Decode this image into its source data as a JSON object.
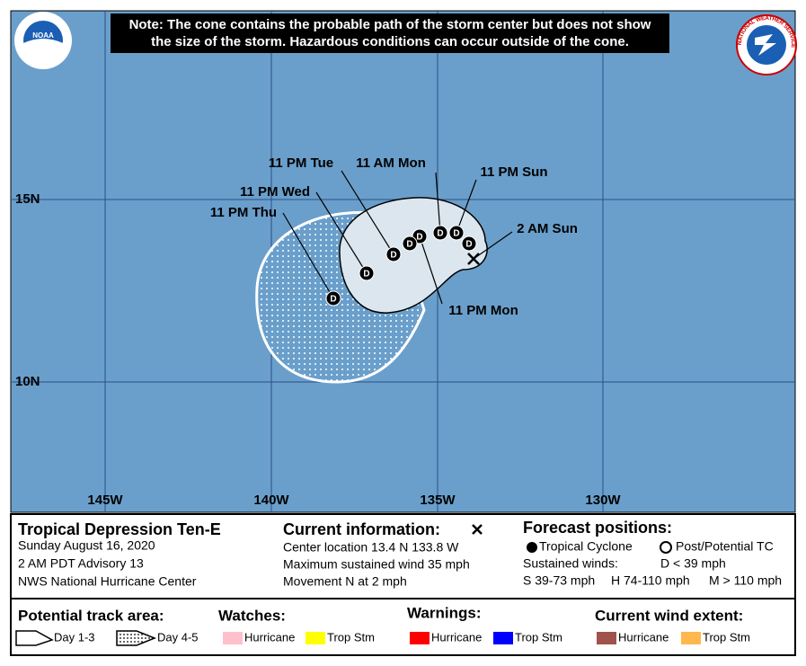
{
  "header": {
    "note": [
      "Note: The cone contains the probable path of the storm center but does not show",
      "the size of the storm. Hazardous conditions can occur outside of the cone."
    ],
    "left_logo": "NOAA",
    "right_logo": "NATIONAL WEATHER SERVICE"
  },
  "map": {
    "lon_labels": [
      "145W",
      "140W",
      "135W",
      "130W"
    ],
    "lat_labels": [
      "15N",
      "10N"
    ],
    "points": [
      {
        "label": "11 PM Sun",
        "symbol": "D"
      },
      {
        "label": null,
        "symbol": "D"
      },
      {
        "label": "11 AM Mon",
        "symbol": "D"
      },
      {
        "label": "11 PM Mon",
        "symbol": "D"
      },
      {
        "label": null,
        "symbol": "D"
      },
      {
        "label": "11 PM Tue",
        "symbol": "D"
      },
      {
        "label": "11 PM Wed",
        "symbol": "D"
      },
      {
        "label": "11 PM Thu",
        "symbol": "D"
      }
    ],
    "current": {
      "label": "2 AM Sun"
    }
  },
  "legend": {
    "storm": {
      "title": "Tropical Depression Ten-E",
      "lines": [
        "Sunday August 16, 2020",
        "2 AM PDT Advisory 13",
        "NWS National Hurricane Center"
      ]
    },
    "current": {
      "title": "Current information:",
      "lines": [
        "Center location 13.4 N 133.8 W",
        "Maximum sustained wind 35 mph",
        "Movement N at 2 mph"
      ]
    },
    "forecast": {
      "title": "Forecast positions:",
      "tropical": "Tropical Cyclone",
      "post": "Post/Potential TC",
      "winds": "Sustained winds:",
      "d": "D < 39 mph",
      "s": "S 39-73 mph",
      "h": "H 74-110 mph",
      "m": "M > 110 mph"
    },
    "track": {
      "title": "Potential track area:",
      "day13": "Day 1-3",
      "day45": "Day 4-5"
    },
    "watches": {
      "title": "Watches:",
      "items": [
        {
          "name": "Hurricane",
          "color": "#ffc0cb"
        },
        {
          "name": "Trop Stm",
          "color": "#ffff00"
        }
      ]
    },
    "warnings": {
      "title": "Warnings:",
      "items": [
        {
          "name": "Hurricane",
          "color": "#ff0000"
        },
        {
          "name": "Trop Stm",
          "color": "#0000ff"
        }
      ]
    },
    "wind": {
      "title": "Current wind extent:",
      "items": [
        {
          "name": "Hurricane",
          "color": "#a0524d"
        },
        {
          "name": "Trop Stm",
          "color": "#ffb84d"
        }
      ]
    }
  }
}
